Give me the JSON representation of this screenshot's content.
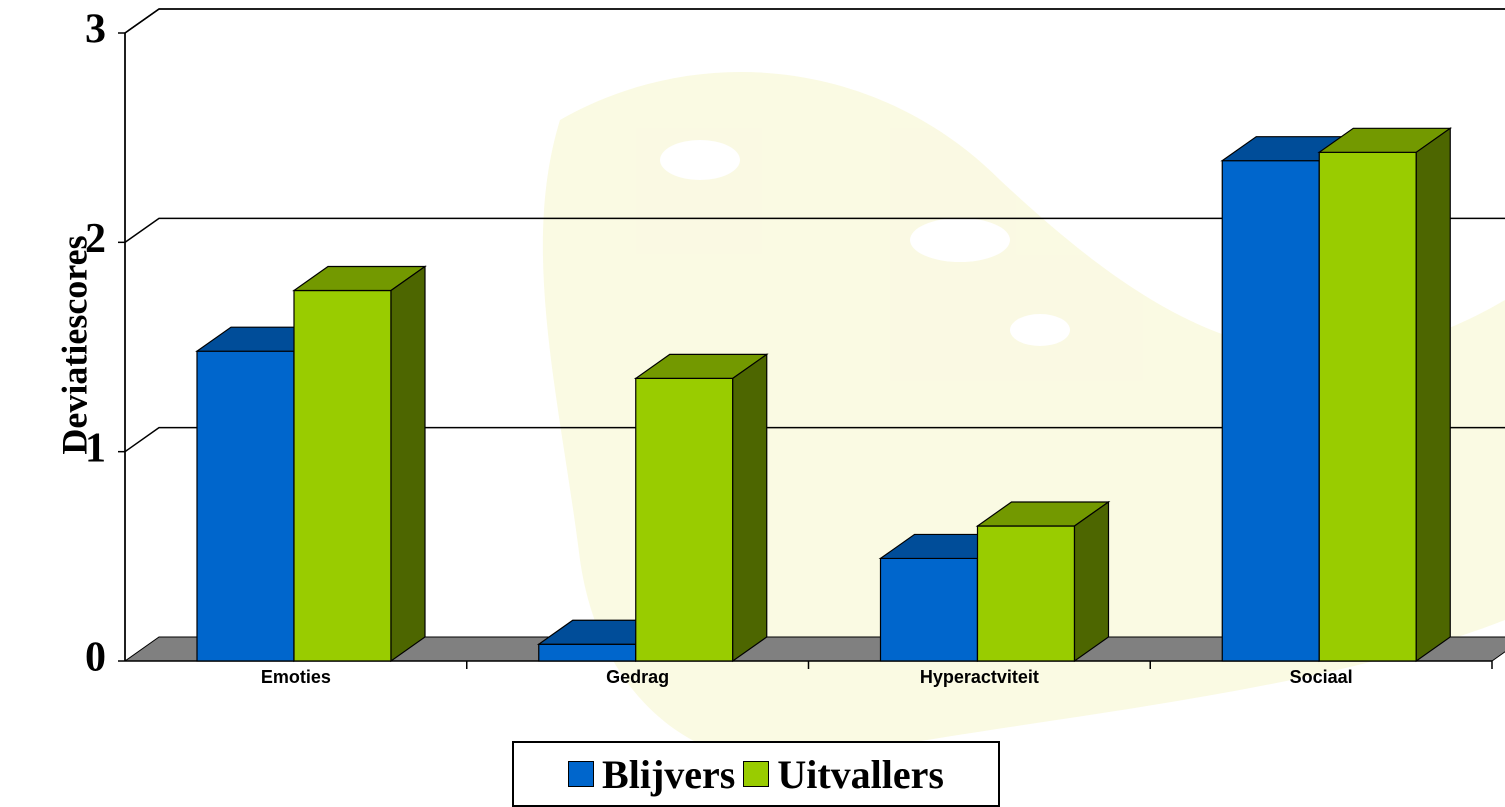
{
  "chart_data": {
    "type": "bar3d",
    "y_label": "Deviatiescores",
    "categories": [
      "Emoties",
      "Gedrag",
      "Hyperactviteit",
      "Sociaal"
    ],
    "series": [
      {
        "name": "Blijvers",
        "color": "#0066cc",
        "values": [
          1.48,
          0.08,
          0.49,
          2.39
        ]
      },
      {
        "name": "Uitvallers",
        "color": "#99cc00",
        "values": [
          1.77,
          1.35,
          0.645,
          2.43
        ]
      }
    ],
    "ylim": [
      0,
      3
    ],
    "yticks": [
      0,
      1,
      2,
      3
    ],
    "grid": true
  }
}
